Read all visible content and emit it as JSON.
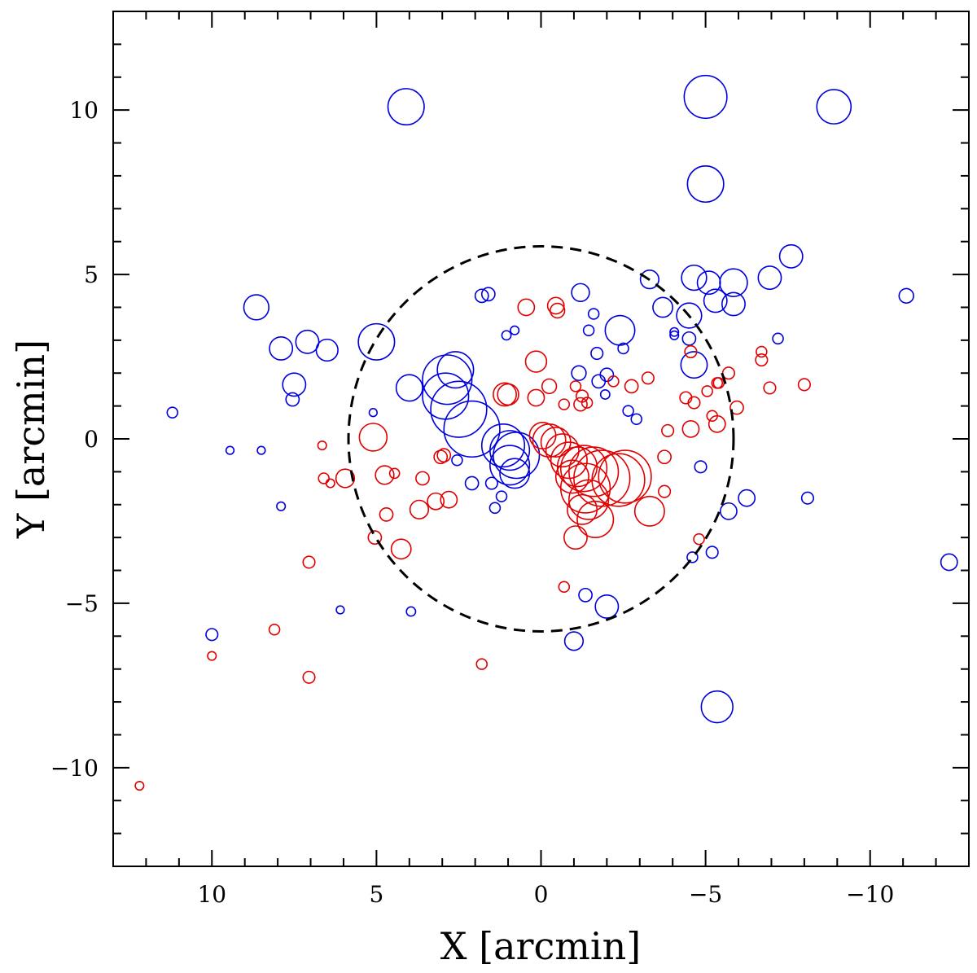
{
  "chart_data": {
    "type": "scatter",
    "title": "",
    "xlabel": "X [arcmin]",
    "ylabel": "Y [arcmin]",
    "xlim": [
      13,
      -13
    ],
    "ylim": [
      -13,
      13
    ],
    "x_ticks": [
      10,
      5,
      0,
      -5,
      -10
    ],
    "y_ticks": [
      10,
      5,
      0,
      -5,
      -10
    ],
    "x_tick_labels": [
      "10",
      "5",
      "0",
      "−5",
      "−10"
    ],
    "y_tick_labels": [
      "10",
      "5",
      "0",
      "−5",
      "−10"
    ],
    "minor_tick_step": 1,
    "grid": false,
    "colors": {
      "blue": "#0000dd",
      "red": "#e00000",
      "boundary": "#000000"
    },
    "boundary_circle": {
      "center": [
        0,
        0
      ],
      "radius": 5.85,
      "style": "dashed"
    },
    "series": [
      {
        "color": "#0000dd",
        "points": [
          [
            4.1,
            10.1,
            0.55
          ],
          [
            -5.0,
            10.4,
            0.65
          ],
          [
            -8.9,
            10.1,
            0.52
          ],
          [
            -5.0,
            7.75,
            0.55
          ],
          [
            8.65,
            4.0,
            0.38
          ],
          [
            7.9,
            2.75,
            0.35
          ],
          [
            7.1,
            2.95,
            0.35
          ],
          [
            6.5,
            2.7,
            0.33
          ],
          [
            7.5,
            1.65,
            0.35
          ],
          [
            7.55,
            1.2,
            0.2
          ],
          [
            5.0,
            2.95,
            0.55
          ],
          [
            4.0,
            1.55,
            0.4
          ],
          [
            11.2,
            0.8,
            0.16
          ],
          [
            9.45,
            -0.35,
            0.12
          ],
          [
            8.5,
            -0.35,
            0.12
          ],
          [
            7.9,
            -2.05,
            0.13
          ],
          [
            5.1,
            0.8,
            0.12
          ],
          [
            10.0,
            -5.95,
            0.18
          ],
          [
            6.1,
            -5.2,
            0.12
          ],
          [
            3.95,
            -5.25,
            0.14
          ],
          [
            1.8,
            4.35,
            0.2
          ],
          [
            1.6,
            4.4,
            0.2
          ],
          [
            1.05,
            3.15,
            0.14
          ],
          [
            0.8,
            3.3,
            0.13
          ],
          [
            -1.2,
            4.45,
            0.27
          ],
          [
            -1.6,
            3.8,
            0.16
          ],
          [
            -1.45,
            3.3,
            0.16
          ],
          [
            -2.4,
            3.3,
            0.45
          ],
          [
            -1.7,
            2.6,
            0.18
          ],
          [
            -2.5,
            2.75,
            0.16
          ],
          [
            -1.15,
            2.0,
            0.22
          ],
          [
            -1.75,
            1.75,
            0.2
          ],
          [
            -2.0,
            1.95,
            0.2
          ],
          [
            -1.95,
            1.35,
            0.14
          ],
          [
            -2.65,
            0.85,
            0.16
          ],
          [
            -2.9,
            0.6,
            0.16
          ],
          [
            -3.3,
            4.85,
            0.28
          ],
          [
            -3.7,
            4.0,
            0.3
          ],
          [
            -4.65,
            4.9,
            0.38
          ],
          [
            -5.1,
            4.75,
            0.35
          ],
          [
            -5.3,
            4.2,
            0.35
          ],
          [
            -5.85,
            4.75,
            0.42
          ],
          [
            -5.85,
            4.1,
            0.35
          ],
          [
            -4.5,
            3.75,
            0.38
          ],
          [
            -6.95,
            4.9,
            0.35
          ],
          [
            -7.6,
            5.55,
            0.35
          ],
          [
            -7.2,
            3.05,
            0.16
          ],
          [
            -4.05,
            3.15,
            0.13
          ],
          [
            -4.05,
            3.25,
            0.13
          ],
          [
            -4.5,
            3.05,
            0.2
          ],
          [
            -4.65,
            2.25,
            0.4
          ],
          [
            -11.1,
            4.35,
            0.22
          ],
          [
            2.6,
            2.1,
            0.55
          ],
          [
            2.85,
            1.8,
            0.75
          ],
          [
            2.9,
            1.3,
            0.7
          ],
          [
            2.5,
            0.9,
            0.85
          ],
          [
            2.1,
            0.3,
            0.85
          ],
          [
            1.15,
            -0.2,
            0.65
          ],
          [
            0.95,
            -0.35,
            0.6
          ],
          [
            0.75,
            -0.5,
            0.7
          ],
          [
            0.95,
            -0.8,
            0.6
          ],
          [
            0.8,
            -1.05,
            0.45
          ],
          [
            2.55,
            -0.65,
            0.16
          ],
          [
            2.1,
            -1.35,
            0.2
          ],
          [
            1.5,
            -1.35,
            0.18
          ],
          [
            1.2,
            -1.75,
            0.16
          ],
          [
            1.4,
            -2.1,
            0.16
          ],
          [
            -4.85,
            -0.85,
            0.18
          ],
          [
            -5.7,
            -2.2,
            0.25
          ],
          [
            -6.25,
            -1.8,
            0.25
          ],
          [
            -8.1,
            -1.8,
            0.18
          ],
          [
            -12.4,
            -3.75,
            0.25
          ],
          [
            -4.6,
            -3.6,
            0.16
          ],
          [
            -5.2,
            -3.45,
            0.18
          ],
          [
            -1.35,
            -4.75,
            0.2
          ],
          [
            -2.0,
            -5.1,
            0.35
          ],
          [
            -1.0,
            -6.15,
            0.28
          ],
          [
            -5.35,
            -8.15,
            0.48
          ]
        ]
      },
      {
        "color": "#e00000",
        "points": [
          [
            0.45,
            4.0,
            0.25
          ],
          [
            -0.45,
            4.05,
            0.25
          ],
          [
            -0.5,
            3.9,
            0.22
          ],
          [
            0.15,
            2.35,
            0.32
          ],
          [
            1.0,
            1.35,
            0.32
          ],
          [
            1.1,
            1.35,
            0.35
          ],
          [
            0.15,
            1.25,
            0.25
          ],
          [
            -0.25,
            1.6,
            0.22
          ],
          [
            -0.7,
            1.05,
            0.16
          ],
          [
            -1.2,
            1.05,
            0.2
          ],
          [
            -1.05,
            1.6,
            0.16
          ],
          [
            -1.25,
            1.3,
            0.18
          ],
          [
            -1.4,
            1.1,
            0.16
          ],
          [
            -2.2,
            1.75,
            0.16
          ],
          [
            -2.75,
            1.6,
            0.2
          ],
          [
            -3.25,
            1.85,
            0.18
          ],
          [
            -3.85,
            0.25,
            0.18
          ],
          [
            -4.4,
            1.25,
            0.18
          ],
          [
            -4.65,
            1.1,
            0.18
          ],
          [
            -4.55,
            0.3,
            0.25
          ],
          [
            -5.35,
            0.45,
            0.25
          ],
          [
            -5.2,
            0.7,
            0.16
          ],
          [
            -5.05,
            1.45,
            0.16
          ],
          [
            -5.35,
            1.7,
            0.16
          ],
          [
            -5.4,
            1.7,
            0.16
          ],
          [
            -5.7,
            2.0,
            0.18
          ],
          [
            -5.95,
            0.95,
            0.2
          ],
          [
            -6.7,
            2.65,
            0.16
          ],
          [
            -6.7,
            2.4,
            0.18
          ],
          [
            -6.95,
            1.55,
            0.18
          ],
          [
            -8.0,
            1.65,
            0.18
          ],
          [
            -4.55,
            2.65,
            0.18
          ],
          [
            -0.05,
            0.1,
            0.4
          ],
          [
            -0.25,
            -0.05,
            0.5
          ],
          [
            -0.45,
            -0.1,
            0.45
          ],
          [
            -0.65,
            -0.35,
            0.5
          ],
          [
            -0.85,
            -0.65,
            0.55
          ],
          [
            -1.1,
            -0.85,
            0.6
          ],
          [
            -0.95,
            -1.15,
            0.5
          ],
          [
            -1.3,
            -0.9,
            0.7
          ],
          [
            -1.6,
            -1.0,
            0.75
          ],
          [
            -1.85,
            -1.2,
            0.85
          ],
          [
            -2.35,
            -1.25,
            0.8
          ],
          [
            -2.55,
            -1.15,
            0.8
          ],
          [
            -1.35,
            -1.5,
            0.75
          ],
          [
            -1.45,
            -1.85,
            0.6
          ],
          [
            -1.65,
            -2.45,
            0.55
          ],
          [
            -1.25,
            -2.15,
            0.45
          ],
          [
            -1.05,
            -3.0,
            0.35
          ],
          [
            -3.3,
            -2.2,
            0.45
          ],
          [
            -3.75,
            -0.55,
            0.2
          ],
          [
            -3.75,
            -1.6,
            0.18
          ],
          [
            -4.8,
            -3.05,
            0.16
          ],
          [
            -0.7,
            -4.5,
            0.16
          ],
          [
            1.8,
            -6.85,
            0.16
          ],
          [
            5.1,
            0.05,
            0.42
          ],
          [
            4.75,
            -1.1,
            0.28
          ],
          [
            4.45,
            -1.05,
            0.15
          ],
          [
            3.6,
            -1.2,
            0.2
          ],
          [
            3.7,
            -2.15,
            0.28
          ],
          [
            3.2,
            -1.9,
            0.25
          ],
          [
            2.8,
            -1.85,
            0.25
          ],
          [
            3.05,
            -0.55,
            0.2
          ],
          [
            2.95,
            -0.5,
            0.2
          ],
          [
            6.65,
            -0.2,
            0.13
          ],
          [
            6.6,
            -1.2,
            0.16
          ],
          [
            6.4,
            -1.35,
            0.13
          ],
          [
            5.95,
            -1.2,
            0.28
          ],
          [
            4.7,
            -2.3,
            0.2
          ],
          [
            5.05,
            -3.0,
            0.2
          ],
          [
            4.25,
            -3.35,
            0.3
          ],
          [
            7.05,
            -3.75,
            0.18
          ],
          [
            8.1,
            -5.8,
            0.16
          ],
          [
            10.0,
            -6.6,
            0.13
          ],
          [
            7.05,
            -7.25,
            0.18
          ],
          [
            12.2,
            -10.55,
            0.13
          ]
        ]
      }
    ]
  }
}
